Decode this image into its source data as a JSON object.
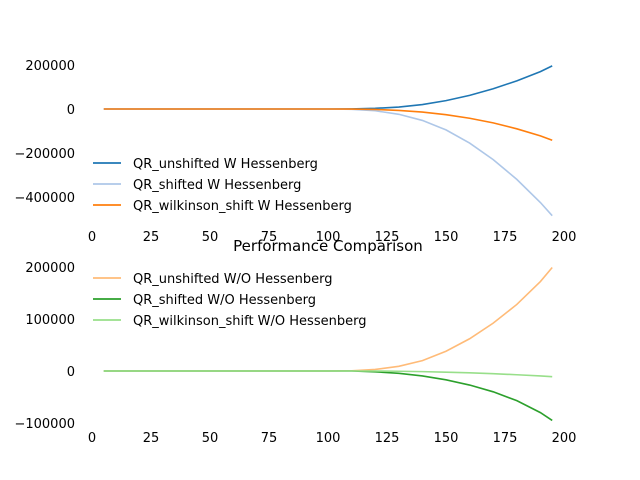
{
  "chart_data": {
    "title": "Performance Comparison",
    "charts": [
      {
        "type": "line",
        "xlim": [
          5,
          195
        ],
        "ylim": [
          -480000,
          210000
        ],
        "xticks": [
          0,
          25,
          50,
          75,
          100,
          125,
          150,
          175,
          200
        ],
        "yticks": [
          200000,
          0,
          -200000,
          -400000
        ],
        "ytick_labels": [
          "200000",
          "0",
          "−200000",
          "−400000"
        ],
        "legend_position": "lower-left",
        "series": [
          {
            "name": "QR_unshifted W Hessenberg",
            "color": "#1f77b4",
            "points": [
              [
                5,
                0
              ],
              [
                100,
                0
              ],
              [
                110,
                500
              ],
              [
                120,
                3000
              ],
              [
                130,
                9000
              ],
              [
                140,
                20000
              ],
              [
                150,
                38000
              ],
              [
                160,
                62000
              ],
              [
                170,
                92000
              ],
              [
                180,
                128000
              ],
              [
                190,
                170000
              ],
              [
                195,
                196000
              ]
            ]
          },
          {
            "name": "QR_shifted W Hessenberg",
            "color": "#aec7e8",
            "points": [
              [
                5,
                0
              ],
              [
                100,
                0
              ],
              [
                110,
                -1500
              ],
              [
                120,
                -8000
              ],
              [
                130,
                -24000
              ],
              [
                140,
                -52000
              ],
              [
                150,
                -95000
              ],
              [
                160,
                -155000
              ],
              [
                170,
                -230000
              ],
              [
                180,
                -320000
              ],
              [
                190,
                -425000
              ],
              [
                195,
                -485000
              ]
            ]
          },
          {
            "name": "QR_wilkinson_shift W Hessenberg",
            "color": "#ff7f0e",
            "points": [
              [
                5,
                0
              ],
              [
                100,
                0
              ],
              [
                110,
                -500
              ],
              [
                120,
                -2200
              ],
              [
                130,
                -6500
              ],
              [
                140,
                -14000
              ],
              [
                150,
                -26000
              ],
              [
                160,
                -42000
              ],
              [
                170,
                -63000
              ],
              [
                180,
                -90000
              ],
              [
                190,
                -122000
              ],
              [
                195,
                -142000
              ]
            ]
          }
        ]
      },
      {
        "type": "line",
        "xlim": [
          5,
          195
        ],
        "ylim": [
          -100000,
          200000
        ],
        "xticks": [
          0,
          25,
          50,
          75,
          100,
          125,
          150,
          175,
          200
        ],
        "yticks": [
          200000,
          100000,
          0,
          -100000
        ],
        "ytick_labels": [
          "200000",
          "100000",
          "0",
          "−100000"
        ],
        "legend_position": "upper-left",
        "series": [
          {
            "name": "QR_unshifted W/O Hessenberg",
            "color": "#ffbb78",
            "points": [
              [
                5,
                0
              ],
              [
                100,
                0
              ],
              [
                110,
                500
              ],
              [
                120,
                3000
              ],
              [
                130,
                9000
              ],
              [
                140,
                20000
              ],
              [
                150,
                38000
              ],
              [
                160,
                62000
              ],
              [
                170,
                92000
              ],
              [
                180,
                128000
              ],
              [
                190,
                172000
              ],
              [
                195,
                199000
              ]
            ]
          },
          {
            "name": "QR_shifted W/O Hessenberg",
            "color": "#2ca02c",
            "points": [
              [
                5,
                0
              ],
              [
                110,
                0
              ],
              [
                120,
                -1500
              ],
              [
                130,
                -4500
              ],
              [
                140,
                -9500
              ],
              [
                150,
                -17000
              ],
              [
                160,
                -27000
              ],
              [
                170,
                -40000
              ],
              [
                180,
                -57000
              ],
              [
                190,
                -80000
              ],
              [
                195,
                -95000
              ]
            ]
          },
          {
            "name": "QR_wilkinson_shift W/O Hessenberg",
            "color": "#98df8a",
            "points": [
              [
                5,
                0
              ],
              [
                120,
                0
              ],
              [
                130,
                -500
              ],
              [
                140,
                -1200
              ],
              [
                150,
                -2200
              ],
              [
                160,
                -3500
              ],
              [
                170,
                -5200
              ],
              [
                180,
                -7200
              ],
              [
                190,
                -9500
              ],
              [
                195,
                -11000
              ]
            ]
          }
        ]
      }
    ]
  }
}
